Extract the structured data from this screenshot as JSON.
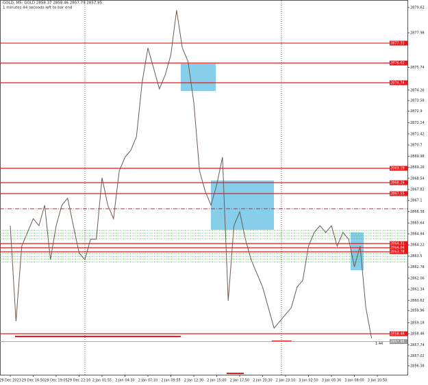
{
  "chart_data": {
    "type": "line",
    "title": "GOLD, M5:  GOLD  2858.37 2858.46 2857.79 2857.95",
    "subtitle": "1 minutes 44 seconds left to bar end",
    "categories": [
      "29 Dec 2023",
      null,
      null,
      null,
      "29 Dec 16:50",
      null,
      null,
      null,
      "29 Dec 19:05",
      null,
      null,
      null,
      "29 Dec 22:10",
      null,
      null,
      null,
      "2 Jan 01:55",
      null,
      null,
      null,
      "2 Jan 04:30",
      null,
      null,
      null,
      "2 Jan 07:10",
      null,
      null,
      null,
      "2 Jan 09:55",
      null,
      null,
      null,
      "2 Jan 12:30",
      null,
      null,
      null,
      "2 Jan 15:00",
      null,
      null,
      null,
      "2 Jan 17:50",
      null,
      null,
      null,
      "2 Jan 20:30",
      null,
      null,
      null,
      "2 Jan 23:10",
      null,
      null,
      null,
      "3 Jan 02:50",
      null,
      null,
      null,
      "3 Jan 05:30",
      null,
      null,
      null,
      "3 Jan 08:00",
      null,
      null,
      null,
      "3 Jan 10:50"
    ],
    "series": [
      {
        "name": "GOLD",
        "color": "#6b5a52",
        "values": [
          2865.47,
          2859.27,
          2864.14,
          2865.03,
          2865.92,
          2865.47,
          2866.8,
          2863.26,
          2865.47,
          2866.8,
          2867.25,
          2865.47,
          2863.7,
          2863.26,
          2864.59,
          2864.59,
          2868.58,
          2866.8,
          2865.92,
          2869.02,
          2869.91,
          2870.35,
          2871.24,
          2874.79,
          2877.0,
          2875.67,
          2874.34,
          2875.23,
          2876.56,
          2879.44,
          2877.0,
          2876.12,
          2873.46,
          2869.02,
          2867.69,
          2866.8,
          2868.13,
          2869.91,
          2860.6,
          2865.47,
          2866.36,
          2864.59,
          2863.26,
          2862.37,
          2861.48,
          2860.15,
          2858.82,
          2859.27,
          2859.71,
          2860.15,
          2861.48,
          2861.93,
          2864.14,
          2865.03,
          2865.47,
          2865.03,
          2865.47,
          2864.14,
          2865.03,
          2864.59,
          2862.81,
          2864.14,
          2860.15,
          2858.16,
          null
        ]
      }
    ],
    "levels": [
      2877.31,
      2876.02,
      2874.74,
      2869.19,
      2868.26,
      2867.55,
      2864.31,
      2864.04,
      2863.78,
      2858.46
    ],
    "level_color": "#e8191c",
    "dashed_level": 2866.57,
    "current_price": 2857.95,
    "timer_label": "1:44",
    "ylim": [
      2855.8,
      2879.93
    ],
    "yticks": [
      2879.62,
      2877.98,
      2875.74,
      2874.26,
      2873.58,
      2872.9,
      2872.14,
      2871.42,
      2870.7,
      2869.98,
      2869.26,
      2868.54,
      2867.82,
      2867.1,
      2866.38,
      2865.64,
      2864.94,
      2864.22,
      2863.5,
      2862.78,
      2862.06,
      2861.34,
      2860.62,
      2859.96,
      2859.18,
      2858.46,
      2857.74,
      2857.02,
      2856.38
    ]
  }
}
